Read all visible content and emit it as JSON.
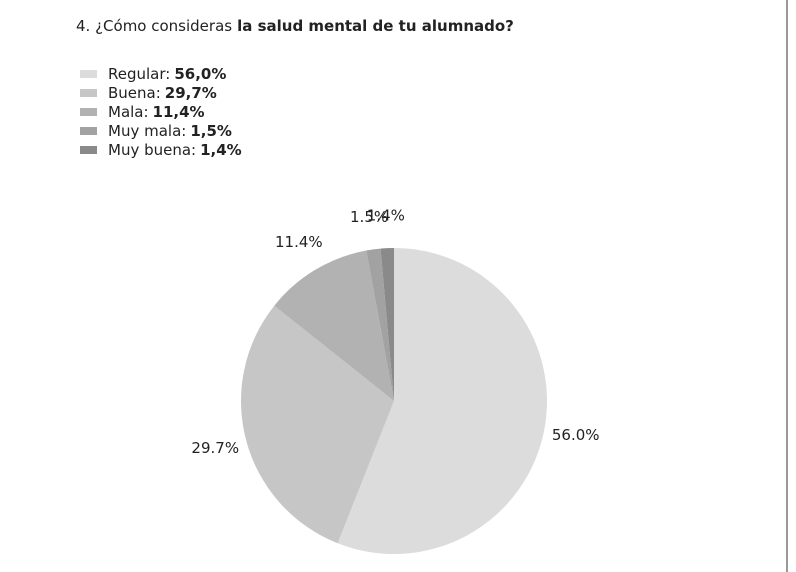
{
  "chart_data": {
    "type": "pie",
    "title_prefix": "4. ¿Cómo consideras",
    "title_bold": "la salud mental de tu alumnado?",
    "categories": [
      "Regular:",
      "Buena:",
      "Mala:",
      "Muy mala:",
      "Muy buena:"
    ],
    "values": [
      56.0,
      29.7,
      11.4,
      1.5,
      1.4
    ],
    "value_labels": [
      "56.0%",
      "29.7%",
      "11.4%",
      "1.5%",
      "1.4%"
    ],
    "legend_labels": [
      "56,0%",
      "29,7%",
      "11,4%",
      "1,5%",
      "1,4%"
    ],
    "colors": [
      "#dcdcdc",
      "#c6c6c6",
      "#b2b2b2",
      "#a2a2a2",
      "#8a8a8a"
    ]
  }
}
